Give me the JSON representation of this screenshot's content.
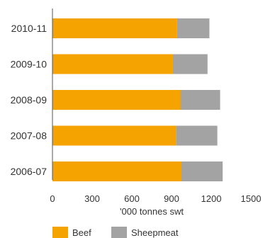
{
  "chart_data": {
    "type": "bar",
    "orientation": "horizontal",
    "stacked": true,
    "categories": [
      "2010-11",
      "2009-10",
      "2008-09",
      "2007-08",
      "2006-07"
    ],
    "series": [
      {
        "name": "Beef",
        "color": "#f5a300",
        "values": [
          942,
          906,
          967,
          934,
          972
        ]
      },
      {
        "name": "Sheepmeat",
        "color": "#a3a3a3",
        "values": [
          244,
          266,
          300,
          312,
          314
        ]
      }
    ],
    "xlabel": "'000 tonnes swt",
    "xlim": [
      0,
      1500
    ],
    "xticks": [
      "0",
      "300",
      "600",
      "900",
      "1200",
      "1500"
    ],
    "grid": false,
    "legend_position": "bottom-left"
  }
}
